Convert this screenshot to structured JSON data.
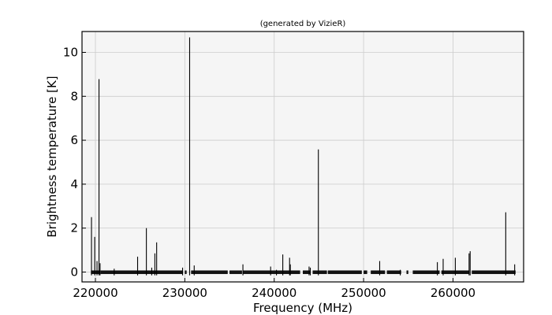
{
  "chart_data": {
    "type": "line",
    "title": "(generated by VizieR)",
    "xlabel": "Frequency (MHz)",
    "ylabel": "Brightness temperature [K]",
    "xlim": [
      218500,
      267900
    ],
    "ylim": [
      -0.45,
      10.95
    ],
    "xticks": [
      220000,
      230000,
      240000,
      250000,
      260000
    ],
    "yticks": [
      0,
      2,
      4,
      6,
      8,
      10
    ],
    "grid": true,
    "baseline_ranges": [
      [
        219500,
        220600
      ],
      [
        220600,
        229800
      ],
      [
        230000,
        230200
      ],
      [
        230700,
        234800
      ],
      [
        235000,
        236400
      ],
      [
        236500,
        242900
      ],
      [
        243200,
        244000
      ],
      [
        244300,
        245900
      ],
      [
        246000,
        249800
      ],
      [
        250000,
        250400
      ],
      [
        250800,
        252400
      ],
      [
        252600,
        254200
      ],
      [
        254800,
        255000
      ],
      [
        255500,
        258500
      ],
      [
        258700,
        261800
      ],
      [
        262100,
        267000
      ]
    ],
    "peaks": [
      [
        219560,
        2.5
      ],
      [
        219920,
        1.6
      ],
      [
        220180,
        0.5
      ],
      [
        220400,
        8.78
      ],
      [
        220520,
        0.4
      ],
      [
        222100,
        0.15
      ],
      [
        224720,
        0.7
      ],
      [
        225700,
        2.0
      ],
      [
        226300,
        0.2
      ],
      [
        226650,
        0.85
      ],
      [
        226850,
        1.35
      ],
      [
        229750,
        0.2
      ],
      [
        230540,
        10.68
      ],
      [
        231050,
        0.3
      ],
      [
        236500,
        0.35
      ],
      [
        239600,
        0.25
      ],
      [
        240250,
        0.1
      ],
      [
        240960,
        0.8
      ],
      [
        241720,
        0.65
      ],
      [
        241800,
        0.35
      ],
      [
        243900,
        0.25
      ],
      [
        244040,
        0.2
      ],
      [
        244940,
        5.58
      ],
      [
        251800,
        0.5
      ],
      [
        254100,
        0.1
      ],
      [
        258250,
        0.45
      ],
      [
        258900,
        0.6
      ],
      [
        260260,
        0.65
      ],
      [
        261800,
        0.85
      ],
      [
        261920,
        0.95
      ],
      [
        265900,
        2.72
      ],
      [
        266900,
        0.35
      ]
    ]
  }
}
